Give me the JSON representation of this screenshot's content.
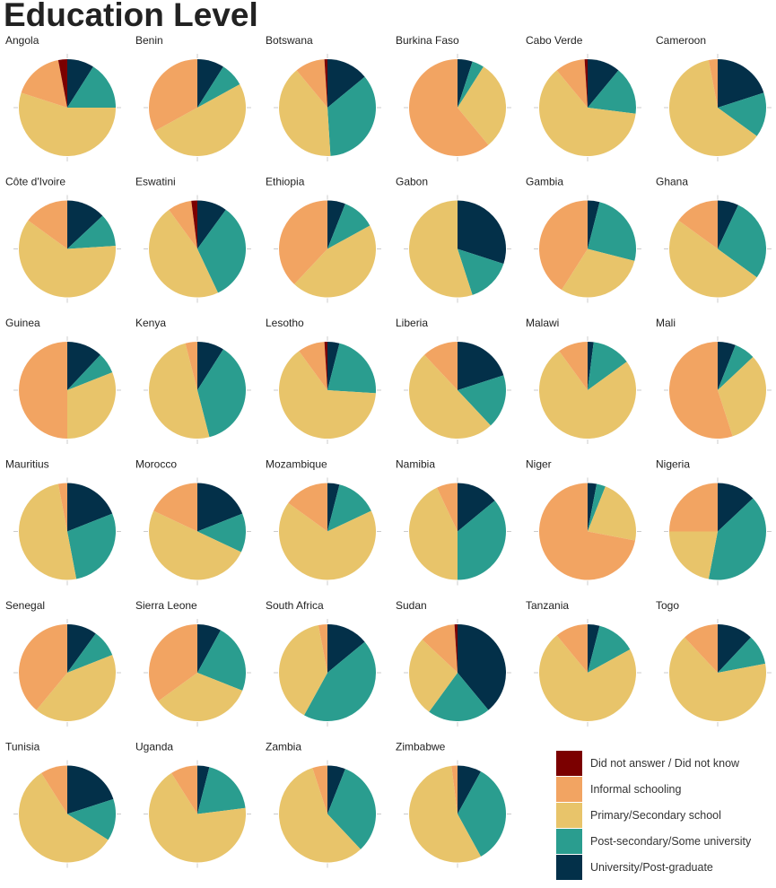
{
  "chart_data": {
    "type": "pie",
    "title": "Education Level",
    "categories": [
      "Did not answer / Did not know",
      "Informal schooling",
      "Primary/Secondary school",
      "Post-secondary/Some university",
      "University/Post-graduate"
    ],
    "colors": [
      "#7b0000",
      "#f2a462",
      "#e8c46a",
      "#2a9d8f",
      "#033049"
    ],
    "legend_position": "bottom-right",
    "unit": "percent of respondents (estimated)",
    "panels": [
      {
        "name": "Angola",
        "values": [
          3,
          17,
          55,
          16,
          9
        ]
      },
      {
        "name": "Benin",
        "values": [
          0,
          33,
          50,
          8,
          9
        ]
      },
      {
        "name": "Botswana",
        "values": [
          1,
          10,
          40,
          35,
          14
        ]
      },
      {
        "name": "Burkina Faso",
        "values": [
          0,
          61,
          30,
          4,
          5
        ]
      },
      {
        "name": "Cabo Verde",
        "values": [
          1,
          10,
          62,
          16,
          11
        ]
      },
      {
        "name": "Cameroon",
        "values": [
          0,
          3,
          62,
          15,
          20
        ]
      },
      {
        "name": "Côte d'Ivoire",
        "values": [
          0,
          15,
          61,
          11,
          13
        ]
      },
      {
        "name": "Eswatini",
        "values": [
          2,
          8,
          47,
          33,
          10
        ]
      },
      {
        "name": "Ethiopia",
        "values": [
          0,
          38,
          45,
          11,
          6
        ]
      },
      {
        "name": "Gabon",
        "values": [
          0,
          0,
          55,
          15,
          30
        ]
      },
      {
        "name": "Gambia",
        "values": [
          0,
          41,
          30,
          25,
          4
        ]
      },
      {
        "name": "Ghana",
        "values": [
          0,
          15,
          50,
          28,
          7
        ]
      },
      {
        "name": "Guinea",
        "values": [
          0,
          50,
          31,
          7,
          12
        ]
      },
      {
        "name": "Kenya",
        "values": [
          0,
          4,
          50,
          37,
          9
        ]
      },
      {
        "name": "Lesotho",
        "values": [
          1,
          9,
          64,
          22,
          4
        ]
      },
      {
        "name": "Liberia",
        "values": [
          0,
          12,
          50,
          18,
          20
        ]
      },
      {
        "name": "Malawi",
        "values": [
          0,
          10,
          75,
          13,
          2
        ]
      },
      {
        "name": "Mali",
        "values": [
          0,
          55,
          32,
          7,
          6
        ]
      },
      {
        "name": "Mauritius",
        "values": [
          0,
          3,
          50,
          28,
          19
        ]
      },
      {
        "name": "Morocco",
        "values": [
          0,
          18,
          50,
          13,
          19
        ]
      },
      {
        "name": "Mozambique",
        "values": [
          0,
          15,
          67,
          14,
          4
        ]
      },
      {
        "name": "Namibia",
        "values": [
          0,
          7,
          43,
          36,
          14
        ]
      },
      {
        "name": "Niger",
        "values": [
          0,
          72,
          22,
          3,
          3
        ]
      },
      {
        "name": "Nigeria",
        "values": [
          0,
          25,
          22,
          40,
          13
        ]
      },
      {
        "name": "Senegal",
        "values": [
          0,
          39,
          42,
          9,
          10
        ]
      },
      {
        "name": "Sierra Leone",
        "values": [
          0,
          35,
          34,
          23,
          8
        ]
      },
      {
        "name": "South Africa",
        "values": [
          0,
          3,
          39,
          44,
          14
        ]
      },
      {
        "name": "Sudan",
        "values": [
          1,
          12,
          27,
          21,
          39
        ]
      },
      {
        "name": "Tanzania",
        "values": [
          0,
          11,
          72,
          13,
          4
        ]
      },
      {
        "name": "Togo",
        "values": [
          0,
          12,
          66,
          10,
          12
        ]
      },
      {
        "name": "Tunisia",
        "values": [
          0,
          9,
          57,
          14,
          20
        ]
      },
      {
        "name": "Uganda",
        "values": [
          0,
          9,
          68,
          19,
          4
        ]
      },
      {
        "name": "Zambia",
        "values": [
          0,
          5,
          57,
          32,
          6
        ]
      },
      {
        "name": "Zimbabwe",
        "values": [
          0,
          2,
          56,
          34,
          8
        ]
      }
    ]
  }
}
